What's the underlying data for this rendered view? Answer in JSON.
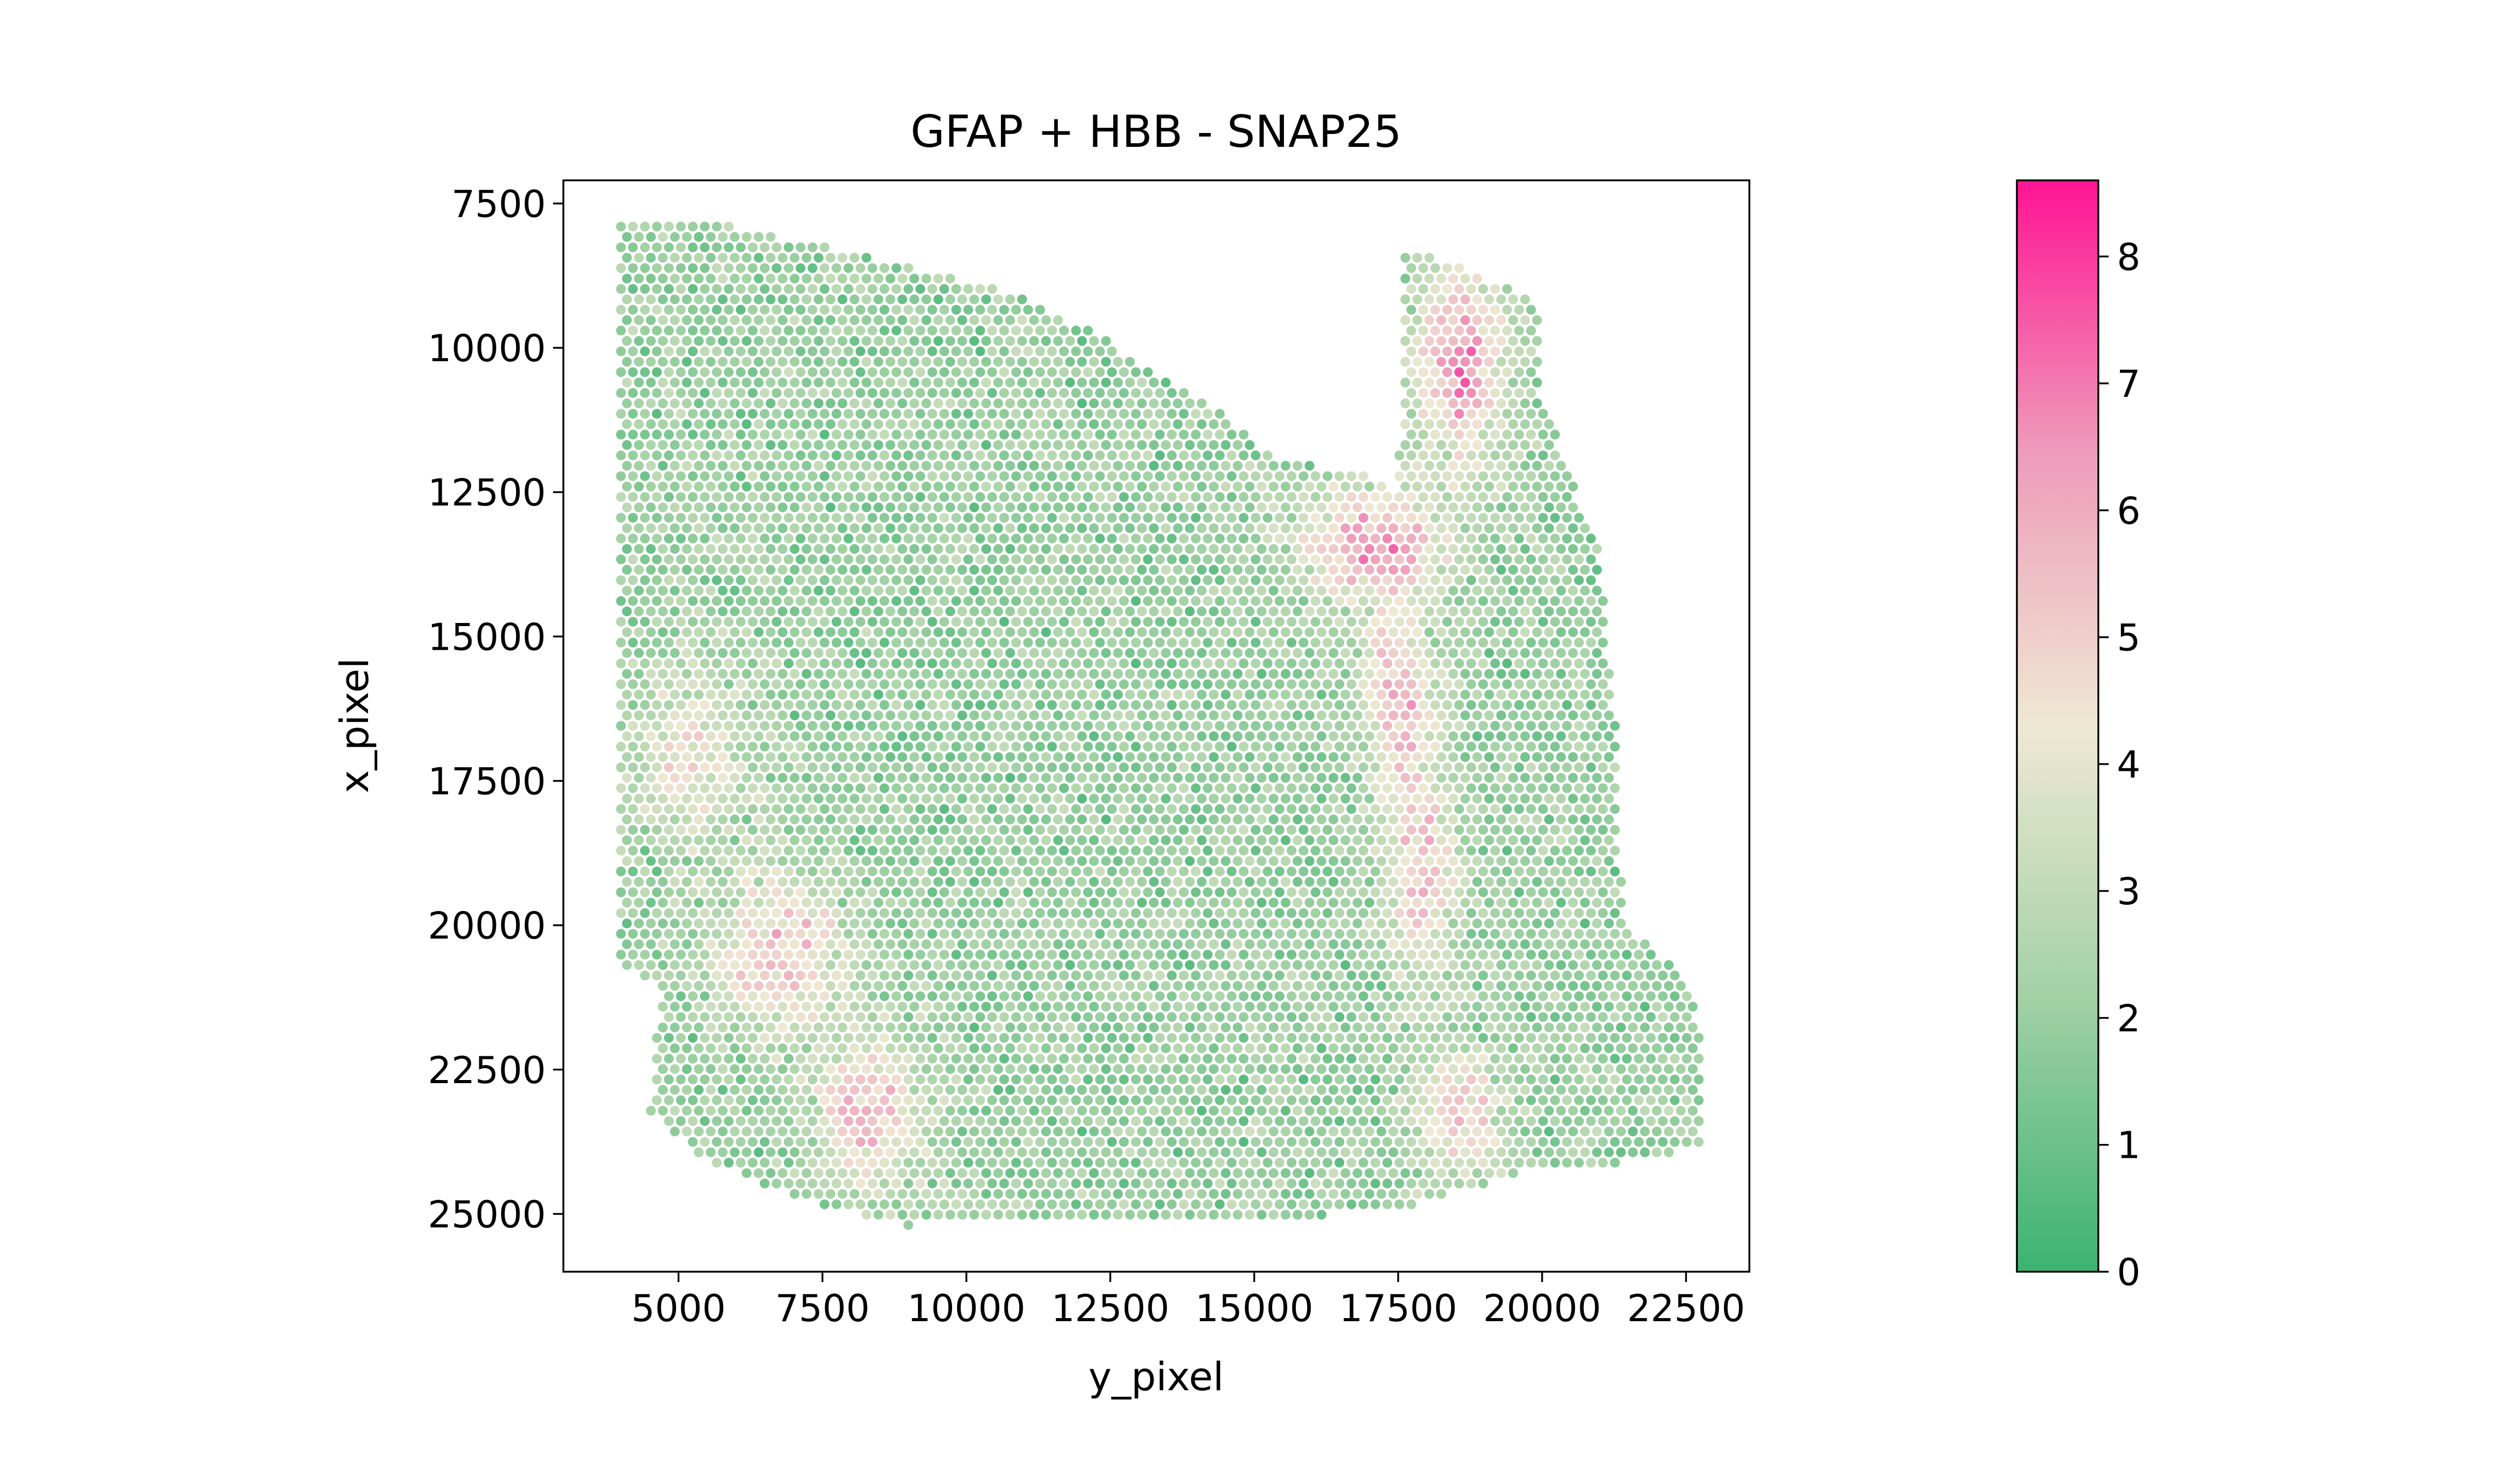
{
  "chart_data": {
    "type": "scatter",
    "title": "GFAP + HBB - SNAP25",
    "xlabel": "y_pixel",
    "ylabel": "x_pixel",
    "xlim": [
      3000,
      23600
    ],
    "ylim": [
      26000,
      7100
    ],
    "y_inverted": true,
    "x_ticks": [
      5000,
      7500,
      10000,
      12500,
      15000,
      17500,
      20000,
      22500
    ],
    "x_tick_labels": [
      "5000",
      "7500",
      "10000",
      "12500",
      "15000",
      "17500",
      "20000",
      "22500"
    ],
    "y_ticks": [
      7500,
      10000,
      12500,
      15000,
      17500,
      20000,
      22500,
      25000
    ],
    "y_tick_labels": [
      "7500",
      "10000",
      "12500",
      "15000",
      "17500",
      "20000",
      "22500",
      "25000"
    ],
    "spot_spacing": 208,
    "tissue_boundary": [
      [
        4000,
        7900
      ],
      [
        6000,
        7900
      ],
      [
        9000,
        8600
      ],
      [
        11000,
        9100
      ],
      [
        12300,
        9800
      ],
      [
        13300,
        10400
      ],
      [
        14300,
        11000
      ],
      [
        15300,
        11900
      ],
      [
        16300,
        12100
      ],
      [
        17000,
        12100
      ],
      [
        17500,
        12700
      ],
      [
        17600,
        8300
      ],
      [
        18500,
        8500
      ],
      [
        20000,
        9300
      ],
      [
        20000,
        11000
      ],
      [
        20200,
        11300
      ],
      [
        20600,
        12500
      ],
      [
        21000,
        13500
      ],
      [
        21100,
        15000
      ],
      [
        21300,
        16800
      ],
      [
        21400,
        20000
      ],
      [
        22200,
        20600
      ],
      [
        22700,
        21200
      ],
      [
        22800,
        23800
      ],
      [
        21000,
        24200
      ],
      [
        19500,
        24300
      ],
      [
        18000,
        24800
      ],
      [
        16500,
        25000
      ],
      [
        14000,
        25100
      ],
      [
        11000,
        25100
      ],
      [
        9000,
        25200
      ],
      [
        8000,
        25000
      ],
      [
        6700,
        24600
      ],
      [
        5400,
        24000
      ],
      [
        4500,
        23200
      ],
      [
        4700,
        21000
      ],
      [
        4000,
        20800
      ]
    ],
    "high_regions": [
      {
        "name": "upper right lobe",
        "center": [
          18600,
          10300
        ],
        "radius": [
          900,
          1900
        ],
        "value": 7.4
      },
      {
        "name": "central band top",
        "center": [
          17000,
          13400
        ],
        "radius": [
          1500,
          1100
        ],
        "value": 7.0
      },
      {
        "name": "central band mid",
        "center": [
          17500,
          16000
        ],
        "radius": [
          700,
          1800
        ],
        "value": 6.4
      },
      {
        "name": "central band lower",
        "center": [
          17900,
          19200
        ],
        "radius": [
          700,
          2200
        ],
        "value": 6.0
      },
      {
        "name": "central band bottom",
        "center": [
          18600,
          23300
        ],
        "radius": [
          900,
          1300
        ],
        "value": 5.6
      },
      {
        "name": "left lower patch",
        "center": [
          6800,
          20500
        ],
        "radius": [
          1300,
          1600
        ],
        "value": 6.0
      },
      {
        "name": "left bottom patch",
        "center": [
          8300,
          23200
        ],
        "radius": [
          1100,
          1500
        ],
        "value": 6.0
      },
      {
        "name": "left middle patch",
        "center": [
          5200,
          17000
        ],
        "radius": [
          1100,
          1600
        ],
        "value": 5.0
      }
    ],
    "baseline_value": 2.0,
    "colorbar": {
      "min": 0,
      "max": 8.6,
      "ticks": [
        0,
        1,
        2,
        3,
        4,
        5,
        6,
        7,
        8
      ],
      "tick_labels": [
        "0",
        "1",
        "2",
        "3",
        "4",
        "5",
        "6",
        "7",
        "8"
      ],
      "colors": [
        "#3cb371",
        "#a2d1a4",
        "#efe8d3",
        "#ee9cba",
        "#ff1493"
      ]
    }
  }
}
